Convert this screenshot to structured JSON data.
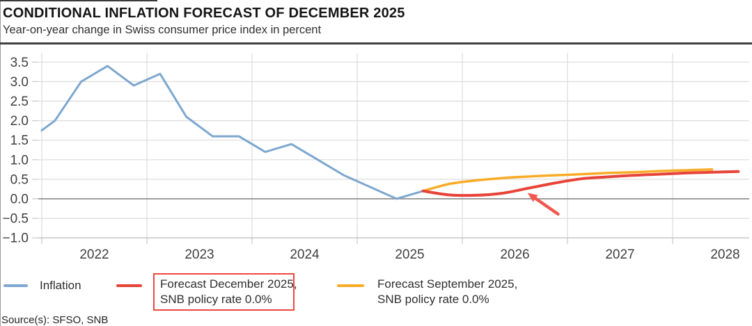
{
  "header": {
    "title": "CONDITIONAL INFLATION FORECAST OF DECEMBER 2025",
    "subtitle": "Year-on-year change in Swiss consumer price index in percent"
  },
  "source": "Source(s): SFSO, SNB",
  "legend": {
    "highlight_box_color": "#EF453F",
    "items": [
      {
        "id": "inflation",
        "color": "#7DA7CF",
        "lines": [
          "Inflation"
        ]
      },
      {
        "id": "forecast-december-2025",
        "color": "#E74338",
        "highlight_box": true,
        "lines": [
          "Forecast December 2025,",
          "SNB policy rate 0.0%"
        ]
      },
      {
        "id": "forecast-september-2025",
        "color": "#F9AB26",
        "lines": [
          "Forecast September 2025,",
          "SNB policy rate 0.0%"
        ]
      }
    ]
  },
  "chart_data": {
    "type": "line",
    "title": "CONDITIONAL INFLATION FORECAST OF DECEMBER 2025",
    "ylabel": "Year-on-year change in Swiss consumer price index in percent",
    "ylim": [
      -1.0,
      3.5
    ],
    "xlim": [
      2022.0,
      2028.75
    ],
    "grid": true,
    "colors": {
      "gridline": "#DCDCDC",
      "zero_line": "#8F8F8F",
      "axis_line": "#B3B3B3",
      "tick": "#C9C9C9",
      "axis_text": "#3F3F3F"
    },
    "x_axis": {
      "gridline_years": [
        2022,
        2023,
        2024,
        2025,
        2026,
        2027,
        2028
      ],
      "tick_labels": [
        "2022",
        "2023",
        "2024",
        "2025",
        "2026",
        "2027",
        "2028"
      ],
      "tick_positions": [
        2022.5,
        2023.5,
        2024.5,
        2025.5,
        2026.5,
        2027.5,
        2028.5
      ]
    },
    "y_axis": {
      "ticks": [
        {
          "value": 3.5,
          "label": "3.5"
        },
        {
          "value": 3.0,
          "label": "3.0"
        },
        {
          "value": 2.5,
          "label": "2.5"
        },
        {
          "value": 2.0,
          "label": "2.0"
        },
        {
          "value": 1.5,
          "label": "1.5"
        },
        {
          "value": 1.0,
          "label": "1.0"
        },
        {
          "value": 0.5,
          "label": "0.5"
        },
        {
          "value": 0.0,
          "label": "0.0"
        },
        {
          "value": -0.5,
          "label": "−0.5"
        },
        {
          "value": -1.0,
          "label": "−1.0"
        }
      ]
    },
    "series": [
      {
        "id": "inflation",
        "name": "Inflation",
        "color": "#7DA7CF",
        "width": 3,
        "smooth": false,
        "points": [
          [
            2022.0,
            1.75
          ],
          [
            2022.125,
            2.0
          ],
          [
            2022.375,
            3.0
          ],
          [
            2022.625,
            3.4
          ],
          [
            2022.875,
            2.9
          ],
          [
            2023.125,
            3.2
          ],
          [
            2023.375,
            2.1
          ],
          [
            2023.625,
            1.6
          ],
          [
            2023.875,
            1.6
          ],
          [
            2024.125,
            1.2
          ],
          [
            2024.375,
            1.4
          ],
          [
            2024.625,
            1.0
          ],
          [
            2024.875,
            0.6
          ],
          [
            2025.125,
            0.3
          ],
          [
            2025.375,
            0.0
          ],
          [
            2025.625,
            0.2
          ]
        ]
      },
      {
        "id": "forecast-september-2025",
        "name": "Forecast September 2025, SNB policy rate 0.0%",
        "color": "#F9AB26",
        "width": 3.5,
        "smooth": true,
        "points": [
          [
            2025.625,
            0.2
          ],
          [
            2025.875,
            0.38
          ],
          [
            2026.125,
            0.47
          ],
          [
            2026.375,
            0.53
          ],
          [
            2026.625,
            0.57
          ],
          [
            2026.875,
            0.6
          ],
          [
            2027.125,
            0.63
          ],
          [
            2027.375,
            0.66
          ],
          [
            2027.625,
            0.68
          ],
          [
            2027.875,
            0.71
          ],
          [
            2028.125,
            0.73
          ],
          [
            2028.375,
            0.75
          ]
        ]
      },
      {
        "id": "forecast-december-2025",
        "name": "Forecast December 2025, SNB policy rate 0.0%",
        "color": "#E74338",
        "width": 4,
        "smooth": true,
        "points": [
          [
            2025.625,
            0.2
          ],
          [
            2025.875,
            0.1
          ],
          [
            2026.125,
            0.09
          ],
          [
            2026.375,
            0.14
          ],
          [
            2026.625,
            0.27
          ],
          [
            2026.875,
            0.4
          ],
          [
            2027.125,
            0.51
          ],
          [
            2027.375,
            0.56
          ],
          [
            2027.625,
            0.6
          ],
          [
            2027.875,
            0.63
          ],
          [
            2028.125,
            0.66
          ],
          [
            2028.375,
            0.68
          ],
          [
            2028.625,
            0.7
          ]
        ]
      }
    ],
    "annotation": {
      "type": "arrow",
      "color": "#F2574F",
      "tip": [
        2026.62,
        0.15
      ],
      "tail": [
        2026.91,
        -0.39
      ],
      "points_at": "forecast-december-2025"
    }
  }
}
